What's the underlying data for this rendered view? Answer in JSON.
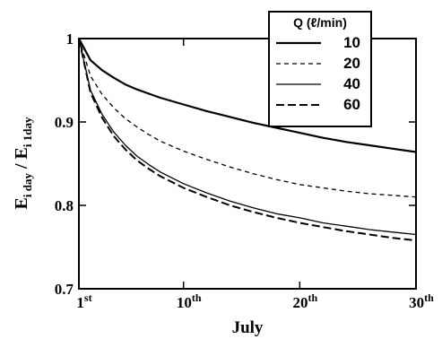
{
  "chart_data": {
    "type": "line",
    "xlabel": "July",
    "ylabel_main": "E",
    "ylabel_sub1": "i day",
    "ylabel_sep": " / E",
    "ylabel_sub2": "i 1day",
    "ylim": [
      0.7,
      1.0
    ],
    "xlim": [
      1,
      30
    ],
    "grid": false,
    "legend_placement": "top-right",
    "legend_title": "Q (ℓ/min)",
    "x_ticks": [
      {
        "value": 1,
        "num": "1",
        "sup": "st"
      },
      {
        "value": 10,
        "num": "10",
        "sup": "th"
      },
      {
        "value": 20,
        "num": "20",
        "sup": "th"
      },
      {
        "value": 30,
        "num": "30",
        "sup": "th"
      }
    ],
    "y_ticks": [
      {
        "value": 0.7,
        "label": "0.7"
      },
      {
        "value": 0.8,
        "label": "0.8"
      },
      {
        "value": 0.9,
        "label": "0.9"
      },
      {
        "value": 1.0,
        "label": "1"
      }
    ],
    "x": [
      1,
      2,
      3,
      4,
      5,
      6,
      7,
      8,
      10,
      12,
      14,
      16,
      18,
      20,
      22,
      24,
      26,
      28,
      30
    ],
    "series": [
      {
        "name": "10",
        "dash": "solid",
        "width": 2.2,
        "values": [
          1.0,
          0.974,
          0.962,
          0.953,
          0.945,
          0.939,
          0.934,
          0.929,
          0.921,
          0.913,
          0.906,
          0.899,
          0.893,
          0.887,
          0.881,
          0.876,
          0.872,
          0.868,
          0.864
        ]
      },
      {
        "name": "20",
        "dash": "short-dash",
        "width": 1.3,
        "values": [
          1.0,
          0.955,
          0.933,
          0.917,
          0.904,
          0.894,
          0.885,
          0.877,
          0.865,
          0.855,
          0.846,
          0.838,
          0.831,
          0.825,
          0.821,
          0.817,
          0.814,
          0.812,
          0.81
        ]
      },
      {
        "name": "40",
        "dash": "solid",
        "width": 1.3,
        "values": [
          1.0,
          0.938,
          0.909,
          0.888,
          0.872,
          0.859,
          0.849,
          0.84,
          0.826,
          0.815,
          0.805,
          0.797,
          0.79,
          0.785,
          0.779,
          0.775,
          0.771,
          0.768,
          0.765
        ]
      },
      {
        "name": "60",
        "dash": "long-dash",
        "width": 2.0,
        "values": [
          1.0,
          0.935,
          0.905,
          0.883,
          0.867,
          0.854,
          0.844,
          0.835,
          0.821,
          0.81,
          0.8,
          0.792,
          0.785,
          0.779,
          0.774,
          0.769,
          0.765,
          0.761,
          0.758
        ]
      }
    ]
  }
}
